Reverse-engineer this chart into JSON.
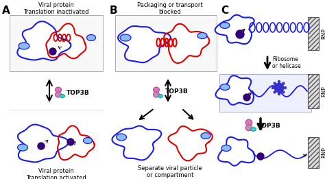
{
  "panel_labels": [
    "A",
    "B",
    "C"
  ],
  "panel_label_fontsize": 11,
  "panel_label_weight": "bold",
  "text_A_top": "Viral protein\nTranslation inactivated",
  "text_A_bottom": "Viral protein\nTranslation activated",
  "text_B_top": "Packaging or transport\nblocked",
  "text_B_bottom": "Separate viral particle\nor compartment",
  "text_top3b": "TOP3B",
  "text_ribosome": "Ribosome\nor helicase",
  "text_rnp": "RNP",
  "bg_color": "#ffffff",
  "blue_color": "#1a1aee",
  "red_color": "#dd0000",
  "light_blue_face": "#6699cc",
  "light_blue2": "#88bbee",
  "dark_purple": "#330077",
  "mid_purple": "#5500aa",
  "pink_color": "#dd77bb",
  "cyan_color": "#44cccc",
  "navy_blue": "#000088",
  "fig_width": 4.74,
  "fig_height": 2.61,
  "dpi": 100
}
